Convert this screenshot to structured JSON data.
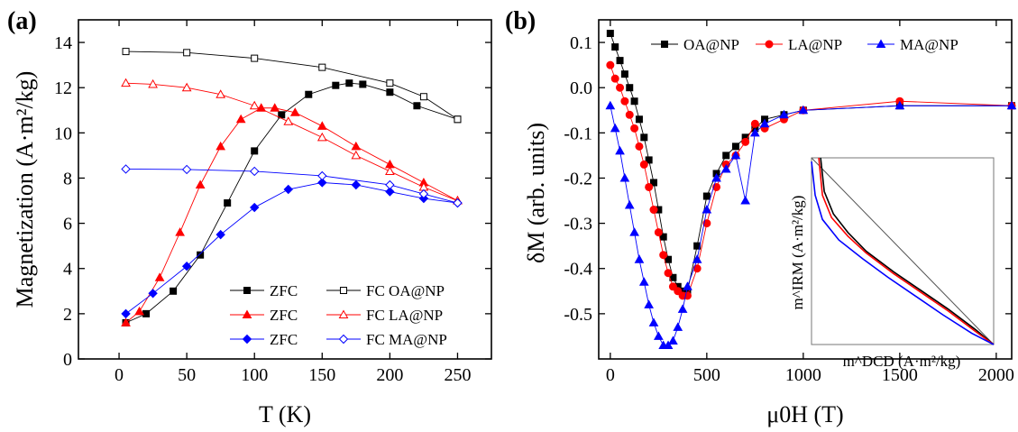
{
  "figure": {
    "panel_a_label": "(a)",
    "panel_b_label": "(b)",
    "inset_xlabel": "m^DCD (A·m²/kg)",
    "inset_ylabel": "m^IRM (A·m²/kg)"
  },
  "chart_data": [
    {
      "type": "line",
      "panel": "(a)",
      "xlabel": "T (K)",
      "ylabel": "Magnetization (A·m²/kg)",
      "xlim": [
        -30,
        275
      ],
      "ylim": [
        0,
        15
      ],
      "x_ticks": [
        "0",
        "50",
        "100",
        "150",
        "200",
        "250"
      ],
      "y_ticks": [
        "0",
        "2",
        "4",
        "6",
        "8",
        "10",
        "12",
        "14"
      ],
      "legend_position": "bottom-right",
      "legend_entries": [
        "ZFC",
        "FC OA@NP",
        "ZFC",
        "FC LA@NP",
        "ZFC",
        "FC MA@NP"
      ],
      "colors": {
        "OA": "#000000",
        "LA": "#ff0000",
        "MA": "#0000ff"
      },
      "series": [
        {
          "name": "ZFC",
          "sample": "OA@NP",
          "marker": "square-filled",
          "color": "#000000",
          "x": [
            5,
            20,
            40,
            60,
            80,
            100,
            120,
            140,
            160,
            170,
            180,
            200,
            220,
            250
          ],
          "y": [
            1.6,
            2.0,
            3.0,
            4.6,
            6.9,
            9.2,
            10.8,
            11.7,
            12.1,
            12.2,
            12.15,
            11.8,
            11.2,
            10.6
          ]
        },
        {
          "name": "FC OA@NP",
          "sample": "OA@NP",
          "marker": "square-open",
          "color": "#000000",
          "x": [
            5,
            50,
            100,
            150,
            200,
            225,
            250
          ],
          "y": [
            13.6,
            13.55,
            13.3,
            12.9,
            12.2,
            11.6,
            10.6
          ]
        },
        {
          "name": "ZFC",
          "sample": "LA@NP",
          "marker": "triangle-filled",
          "color": "#ff0000",
          "x": [
            5,
            15,
            30,
            45,
            60,
            75,
            90,
            105,
            115,
            130,
            150,
            175,
            200,
            225,
            250
          ],
          "y": [
            1.6,
            2.1,
            3.6,
            5.6,
            7.7,
            9.4,
            10.6,
            11.1,
            11.1,
            10.9,
            10.3,
            9.4,
            8.6,
            7.8,
            7.0
          ]
        },
        {
          "name": "FC LA@NP",
          "sample": "LA@NP",
          "marker": "triangle-open",
          "color": "#ff0000",
          "x": [
            5,
            25,
            50,
            75,
            100,
            125,
            150,
            175,
            200,
            225,
            250
          ],
          "y": [
            12.2,
            12.15,
            12.0,
            11.7,
            11.2,
            10.5,
            9.8,
            9.0,
            8.3,
            7.6,
            7.0
          ]
        },
        {
          "name": "ZFC",
          "sample": "MA@NP",
          "marker": "diamond-filled",
          "color": "#0000ff",
          "x": [
            5,
            25,
            50,
            75,
            100,
            125,
            150,
            175,
            200,
            225,
            250
          ],
          "y": [
            2.0,
            2.9,
            4.1,
            5.5,
            6.7,
            7.5,
            7.8,
            7.7,
            7.4,
            7.1,
            6.9
          ]
        },
        {
          "name": "FC MA@NP",
          "sample": "MA@NP",
          "marker": "diamond-open",
          "color": "#0000ff",
          "x": [
            5,
            50,
            100,
            150,
            200,
            225,
            250
          ],
          "y": [
            8.4,
            8.38,
            8.3,
            8.1,
            7.7,
            7.3,
            6.9
          ]
        }
      ]
    },
    {
      "type": "line",
      "panel": "(b)",
      "xlabel": "μ0H (T)",
      "ylabel": "δM (arb. units)",
      "xlim": [
        -60,
        2080
      ],
      "ylim": [
        -0.6,
        0.15
      ],
      "x_ticks": [
        "0",
        "500",
        "1000",
        "1500",
        "2000"
      ],
      "y_ticks": [
        "0.1",
        "0.0",
        "-0.1",
        "-0.2",
        "-0.3",
        "-0.4",
        "-0.5"
      ],
      "legend_position": "top",
      "legend_entries": [
        "OA@NP",
        "LA@NP",
        "MA@NP"
      ],
      "series": [
        {
          "name": "OA@NP",
          "marker": "square-filled",
          "color": "#000000",
          "x": [
            0,
            25,
            50,
            75,
            100,
            125,
            150,
            175,
            200,
            225,
            250,
            275,
            300,
            325,
            350,
            375,
            400,
            450,
            500,
            550,
            600,
            650,
            700,
            750,
            800,
            900,
            1000,
            1500,
            2080
          ],
          "y": [
            0.12,
            0.09,
            0.06,
            0.03,
            0.0,
            -0.03,
            -0.07,
            -0.11,
            -0.16,
            -0.21,
            -0.27,
            -0.33,
            -0.38,
            -0.42,
            -0.44,
            -0.45,
            -0.45,
            -0.35,
            -0.24,
            -0.19,
            -0.15,
            -0.13,
            -0.11,
            -0.09,
            -0.07,
            -0.06,
            -0.05,
            -0.04,
            -0.04
          ]
        },
        {
          "name": "LA@NP",
          "marker": "circle-filled",
          "color": "#ff0000",
          "x": [
            0,
            25,
            50,
            75,
            100,
            125,
            150,
            175,
            200,
            225,
            250,
            275,
            300,
            325,
            350,
            375,
            400,
            450,
            500,
            550,
            600,
            650,
            700,
            750,
            800,
            900,
            1000,
            1500,
            2080
          ],
          "y": [
            0.05,
            0.02,
            0.0,
            -0.03,
            -0.06,
            -0.09,
            -0.13,
            -0.17,
            -0.22,
            -0.27,
            -0.32,
            -0.37,
            -0.41,
            -0.44,
            -0.45,
            -0.46,
            -0.46,
            -0.4,
            -0.3,
            -0.22,
            -0.17,
            -0.15,
            -0.12,
            -0.08,
            -0.09,
            -0.07,
            -0.05,
            -0.03,
            -0.04
          ]
        },
        {
          "name": "MA@NP",
          "marker": "triangle-filled",
          "color": "#0000ff",
          "x": [
            0,
            25,
            50,
            75,
            100,
            125,
            150,
            175,
            200,
            225,
            250,
            275,
            300,
            325,
            350,
            375,
            400,
            450,
            500,
            550,
            600,
            650,
            700,
            750,
            800,
            900,
            1000,
            1500,
            2080
          ],
          "y": [
            -0.04,
            -0.09,
            -0.14,
            -0.2,
            -0.26,
            -0.32,
            -0.38,
            -0.43,
            -0.48,
            -0.52,
            -0.55,
            -0.57,
            -0.57,
            -0.56,
            -0.53,
            -0.49,
            -0.44,
            -0.38,
            -0.27,
            -0.2,
            -0.18,
            -0.15,
            -0.25,
            -0.1,
            -0.08,
            -0.06,
            -0.05,
            -0.04,
            -0.04
          ]
        }
      ]
    },
    {
      "type": "line",
      "panel": "(b) inset",
      "xlabel": "m^DCD (A·m²/kg)",
      "ylabel": "m^IRM (A·m²/kg)",
      "xlim": [
        0,
        1
      ],
      "ylim": [
        0,
        1
      ],
      "reference_line": "diagonal",
      "series": [
        {
          "name": "OA@NP",
          "color": "#000000",
          "x": [
            0.05,
            0.07,
            0.12,
            0.2,
            0.3,
            0.45,
            0.6,
            0.75,
            0.9,
            1.0
          ],
          "y": [
            1.0,
            0.82,
            0.7,
            0.6,
            0.5,
            0.39,
            0.29,
            0.19,
            0.08,
            0.0
          ]
        },
        {
          "name": "LA@NP",
          "color": "#ff0000",
          "x": [
            0.04,
            0.06,
            0.11,
            0.2,
            0.3,
            0.45,
            0.6,
            0.75,
            0.9,
            1.0
          ],
          "y": [
            1.0,
            0.8,
            0.68,
            0.58,
            0.49,
            0.38,
            0.28,
            0.18,
            0.07,
            0.0
          ]
        },
        {
          "name": "MA@NP",
          "color": "#0000ff",
          "x": [
            0.0,
            0.02,
            0.06,
            0.15,
            0.28,
            0.42,
            0.57,
            0.72,
            0.88,
            1.0
          ],
          "y": [
            0.98,
            0.8,
            0.67,
            0.56,
            0.46,
            0.36,
            0.26,
            0.16,
            0.06,
            0.0
          ]
        }
      ]
    }
  ]
}
